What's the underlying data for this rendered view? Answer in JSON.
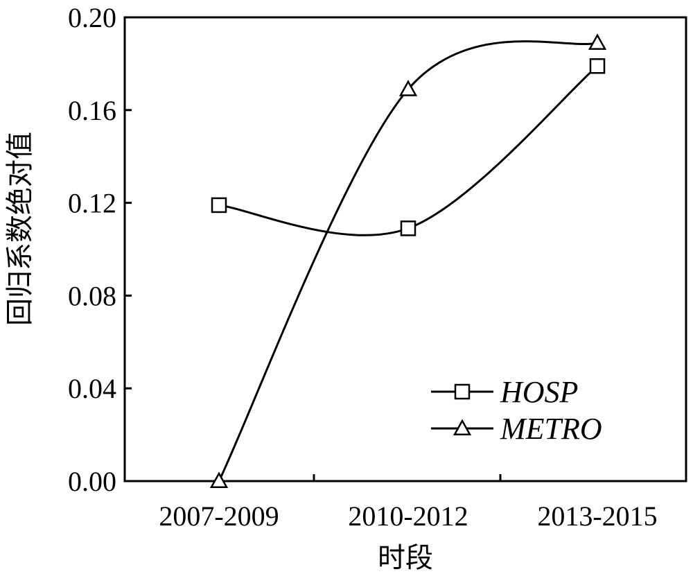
{
  "chart_data": {
    "type": "line",
    "categories": [
      "2007-2009",
      "2010-2012",
      "2013-2015"
    ],
    "series": [
      {
        "name": "HOSP",
        "marker": "square",
        "values": [
          0.119,
          0.109,
          0.179
        ]
      },
      {
        "name": "METRO",
        "marker": "triangle",
        "values": [
          0.0,
          0.169,
          0.189
        ]
      }
    ],
    "xlabel": "时段",
    "ylabel": "回归系数绝对值",
    "ylim": [
      0.0,
      0.2
    ],
    "yticks": [
      "0.00",
      "0.04",
      "0.08",
      "0.12",
      "0.16",
      "0.20"
    ],
    "grid": false,
    "legend_position": "bottom-right",
    "line_color": "#000000"
  }
}
